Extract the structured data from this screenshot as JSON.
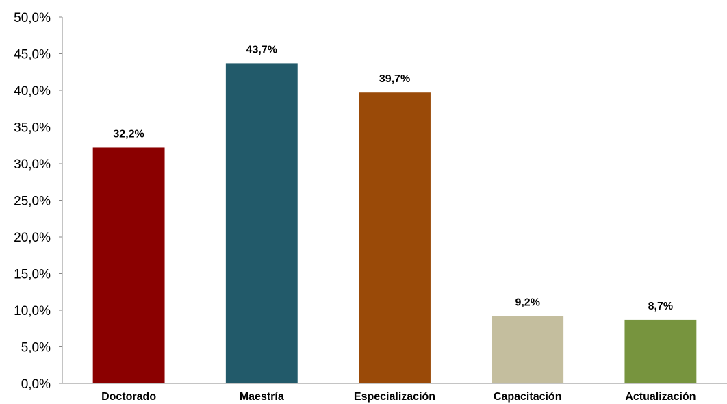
{
  "chart_data": {
    "type": "bar",
    "title": "",
    "xlabel": "",
    "ylabel": "",
    "categories": [
      "Doctorado",
      "Maestría",
      "Especialización",
      "Capacitación",
      "Actualización"
    ],
    "values": [
      32.2,
      43.7,
      39.7,
      9.2,
      8.7
    ],
    "data_labels": [
      "32,2%",
      "43,7%",
      "39,7%",
      "9,2%",
      "8,7%"
    ],
    "colors": [
      "#8B0000",
      "#225A6A",
      "#9A4A08",
      "#C4BE9E",
      "#77943E"
    ],
    "ylim": [
      0,
      50
    ],
    "y_ticks": [
      0,
      5,
      10,
      15,
      20,
      25,
      30,
      35,
      40,
      45,
      50
    ],
    "y_tick_labels": [
      "0,0%",
      "5,0%",
      "10,0%",
      "15,0%",
      "20,0%",
      "25,0%",
      "30,0%",
      "35,0%",
      "40,0%",
      "45,0%",
      "50,0%"
    ],
    "grid": false,
    "legend": "none"
  }
}
